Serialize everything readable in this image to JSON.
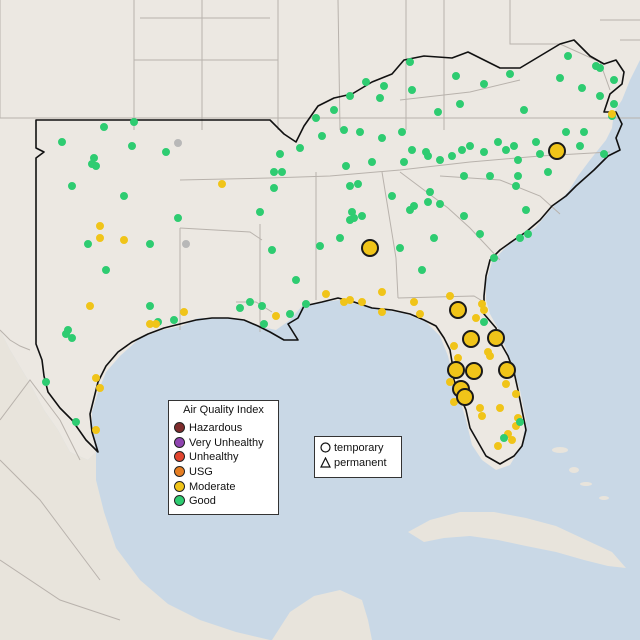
{
  "legend": {
    "title": "Air Quality Index",
    "categories": [
      {
        "label": "Hazardous",
        "color": "#7e2c2c"
      },
      {
        "label": "Very Unhealthy",
        "color": "#8f44b0"
      },
      {
        "label": "Unhealthy",
        "color": "#e2452f"
      },
      {
        "label": "USG",
        "color": "#e67e22"
      },
      {
        "label": "Moderate",
        "color": "#f0c419"
      },
      {
        "label": "Good",
        "color": "#2ecc71"
      }
    ]
  },
  "shape_legend": {
    "temporary": "temporary",
    "permanent": "permanent"
  },
  "region_colors": {
    "land": "#ece8e2",
    "water": "#c9d8e6",
    "borders": "#b8b2ac",
    "outline": "#000000",
    "no_data": "#b8b8b8"
  }
}
